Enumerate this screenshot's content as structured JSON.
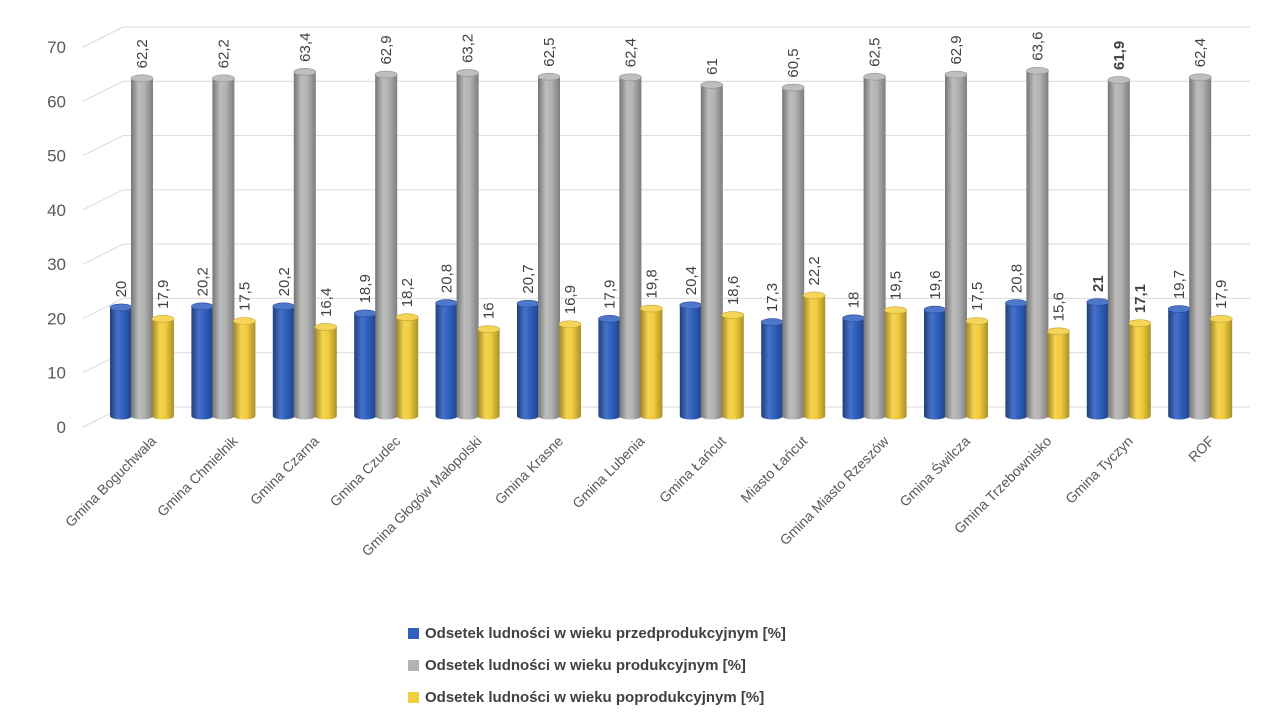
{
  "chart_data": {
    "type": "bar",
    "title": "",
    "xlabel": "",
    "ylabel": "",
    "ylim": [
      0,
      70
    ],
    "yticks": [
      0,
      10,
      20,
      30,
      40,
      50,
      60,
      70
    ],
    "grid": true,
    "legend_position": "bottom",
    "categories": [
      "Gmina Boguchwała",
      "Gmina Chmielnik",
      "Gmina Czarna",
      "Gmina Czudec",
      "Gmina Głogów Małopolski",
      "Gmina Krasne",
      "Gmina Lubenia",
      "Gmina Łańcut",
      "Miasto Łańcut",
      "Gmina Miasto Rzeszów",
      "Gmina Świlcza",
      "Gmina Trzebownisko",
      "Gmina Tyczyn",
      "ROF"
    ],
    "series": [
      {
        "name": "Odsetek ludności  w wieku przedprodukcyjnym [%]",
        "color": "#2f5fbf",
        "values": [
          20,
          20.2,
          20.2,
          18.9,
          20.8,
          20.7,
          17.9,
          20.4,
          17.3,
          18,
          19.6,
          20.8,
          21,
          19.7
        ],
        "labels": [
          "20",
          "20,2",
          "20,2",
          "18,9",
          "20,8",
          "20,7",
          "17,9",
          "20,4",
          "17,3",
          "18",
          "19,6",
          "20,8",
          "21",
          "19,7"
        ]
      },
      {
        "name": "Odsetek ludności  w wieku produkcyjnym [%]",
        "color": "#b3b3b3",
        "values": [
          62.2,
          62.2,
          63.4,
          62.9,
          63.2,
          62.5,
          62.4,
          61,
          60.5,
          62.5,
          62.9,
          63.6,
          61.9,
          62.4
        ],
        "labels": [
          "62,2",
          "62,2",
          "63,4",
          "62,9",
          "63,2",
          "62,5",
          "62,4",
          "61",
          "60,5",
          "62,5",
          "62,9",
          "63,6",
          "61,9",
          "62,4"
        ]
      },
      {
        "name": "Odsetek ludności  w wieku poprodukcyjnym [%]",
        "color": "#f2cd3c",
        "values": [
          17.9,
          17.5,
          16.4,
          18.2,
          16,
          16.9,
          19.8,
          18.6,
          22.2,
          19.5,
          17.5,
          15.6,
          17.1,
          17.9
        ],
        "labels": [
          "17,9",
          "17,5",
          "16,4",
          "18,2",
          "16",
          "16,9",
          "19,8",
          "18,6",
          "22,2",
          "19,5",
          "17,5",
          "15,6",
          "17,1",
          "17,9"
        ]
      }
    ],
    "bold_labels_category": "Gmina Tyczyn"
  }
}
